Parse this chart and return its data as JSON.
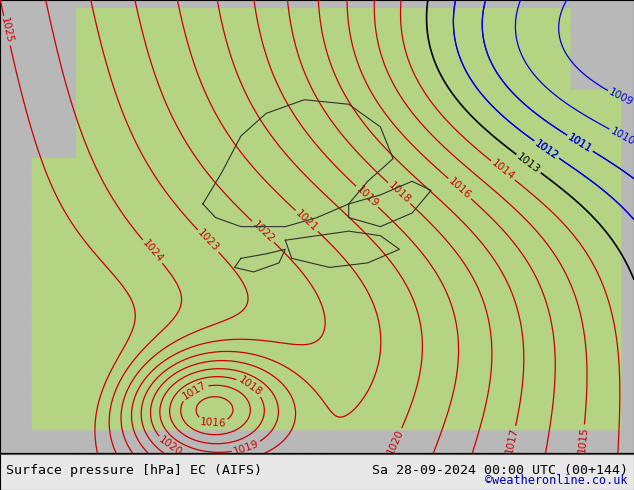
{
  "title_left": "Surface pressure [hPa] EC (AIFS)",
  "title_right": "Sa 28-09-2024 00:00 UTC (00+144)",
  "credit": "©weatheronline.co.uk",
  "credit_color": "#0000bb",
  "bg_color": "#c8c8c8",
  "land_color": "#b4d484",
  "sea_color": "#b8b8b8",
  "text_color": "#000000",
  "title_fontsize": 9.5,
  "credit_fontsize": 8.5,
  "bottom_bar_color": "#e8e8e8",
  "contour_blue_color": "#0000dd",
  "contour_red_color": "#cc0000",
  "contour_black_color": "#000000",
  "contour_label_fontsize": 7.5,
  "border_color": "#303030"
}
